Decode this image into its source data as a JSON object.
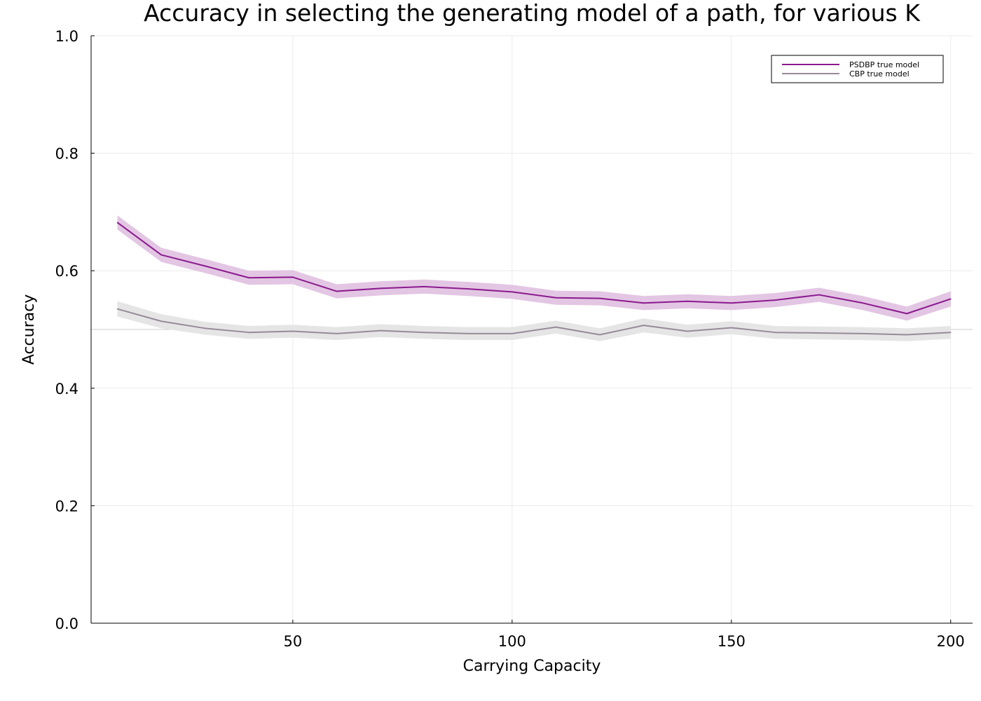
{
  "chart_data": {
    "type": "line",
    "title": "Accuracy in selecting the generating model of a path, for various K",
    "xlabel": "Carrying Capacity",
    "ylabel": "Accuracy",
    "xlim": [
      4,
      205
    ],
    "ylim": [
      0,
      1
    ],
    "xticks": [
      50,
      100,
      150,
      200
    ],
    "xtick_labels": [
      "50",
      "100",
      "150",
      "200"
    ],
    "yticks": [
      0,
      0.2,
      0.4,
      0.6,
      0.8,
      1.0
    ],
    "ytick_labels": [
      "0.0",
      "0.2",
      "0.4",
      "0.6",
      "0.8",
      "1.0"
    ],
    "grid": true,
    "reference_line_y": 0.5,
    "legend_position": "top-right",
    "x": [
      10,
      20,
      30,
      40,
      50,
      60,
      70,
      80,
      90,
      100,
      110,
      120,
      130,
      140,
      150,
      160,
      170,
      180,
      190,
      200
    ],
    "series": [
      {
        "name": "PSDBP true model",
        "color": "#8b1a8f",
        "band_color": "#e3c6e3",
        "values": [
          0.682,
          0.627,
          0.608,
          0.588,
          0.589,
          0.565,
          0.57,
          0.573,
          0.569,
          0.564,
          0.554,
          0.553,
          0.545,
          0.548,
          0.545,
          0.55,
          0.559,
          0.545,
          0.527,
          0.552
        ],
        "band_halfwidth": [
          0.012,
          0.012,
          0.012,
          0.012,
          0.012,
          0.012,
          0.012,
          0.012,
          0.012,
          0.012,
          0.012,
          0.012,
          0.012,
          0.012,
          0.012,
          0.012,
          0.012,
          0.012,
          0.012,
          0.013
        ]
      },
      {
        "name": "CBP true model",
        "color": "#978a99",
        "band_color": "#e5e5e5",
        "values": [
          0.535,
          0.514,
          0.502,
          0.495,
          0.497,
          0.493,
          0.498,
          0.495,
          0.493,
          0.493,
          0.504,
          0.491,
          0.507,
          0.497,
          0.503,
          0.495,
          0.494,
          0.493,
          0.491,
          0.495
        ],
        "band_halfwidth": [
          0.013,
          0.012,
          0.011,
          0.011,
          0.011,
          0.011,
          0.011,
          0.011,
          0.011,
          0.011,
          0.011,
          0.011,
          0.012,
          0.011,
          0.011,
          0.011,
          0.011,
          0.011,
          0.011,
          0.011
        ]
      }
    ]
  }
}
